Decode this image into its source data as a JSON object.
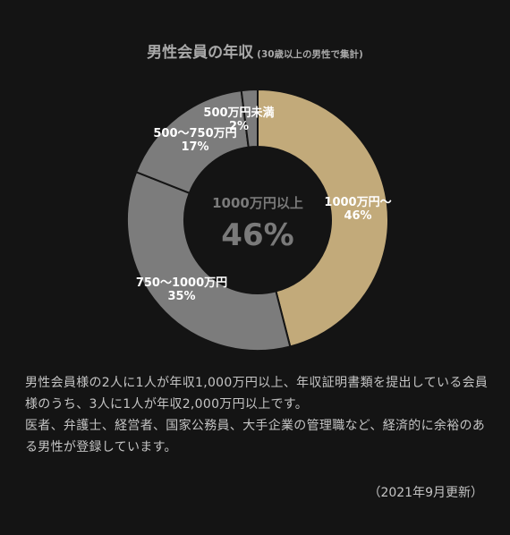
{
  "chart_data": {
    "type": "pie",
    "title": "男性会員の年収",
    "subtitle": "(30歳以上の男性で集計)",
    "categories": [
      "1000万円～",
      "750～1000万円",
      "500～750万円",
      "500万円未満"
    ],
    "values": [
      46,
      35,
      17,
      2
    ],
    "value_labels": [
      "46%",
      "35%",
      "17%",
      "2%"
    ],
    "colors": [
      "#c2aa7a",
      "#7c7c7c",
      "#7c7c7c",
      "#7c7c7c"
    ],
    "center_label": "1000万円以上",
    "center_value": "46%"
  },
  "description": {
    "line1": "男性会員様の2人に1人が年収1,000万円以上、年収証明書類を提出している会員様のうち、3人に1人が年収2,000万円以上です。",
    "line2": "医者、弁護士、経営者、国家公務員、大手企業の管理職など、経済的に余裕のある男性が登録しています。"
  },
  "updated": "（2021年9月更新）"
}
